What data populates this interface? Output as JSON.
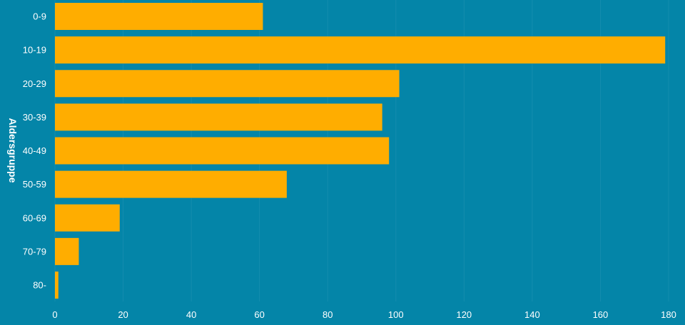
{
  "chart_data": {
    "type": "bar",
    "orientation": "horizontal",
    "categories": [
      "0-9",
      "10-19",
      "20-29",
      "30-39",
      "40-49",
      "50-59",
      "60-69",
      "70-79",
      "80-"
    ],
    "values": [
      61,
      179,
      101,
      96,
      98,
      68,
      19,
      7,
      1
    ],
    "title": "",
    "xlabel": "",
    "ylabel": "Aldersgruppe",
    "xlim": [
      0,
      180
    ],
    "x_ticks": [
      0,
      20,
      40,
      60,
      80,
      100,
      120,
      140,
      160,
      180
    ],
    "grid": true,
    "legend": "none",
    "colors": {
      "background": "#0485a8",
      "bar": "#ffad00",
      "text": "#ffffff"
    }
  }
}
